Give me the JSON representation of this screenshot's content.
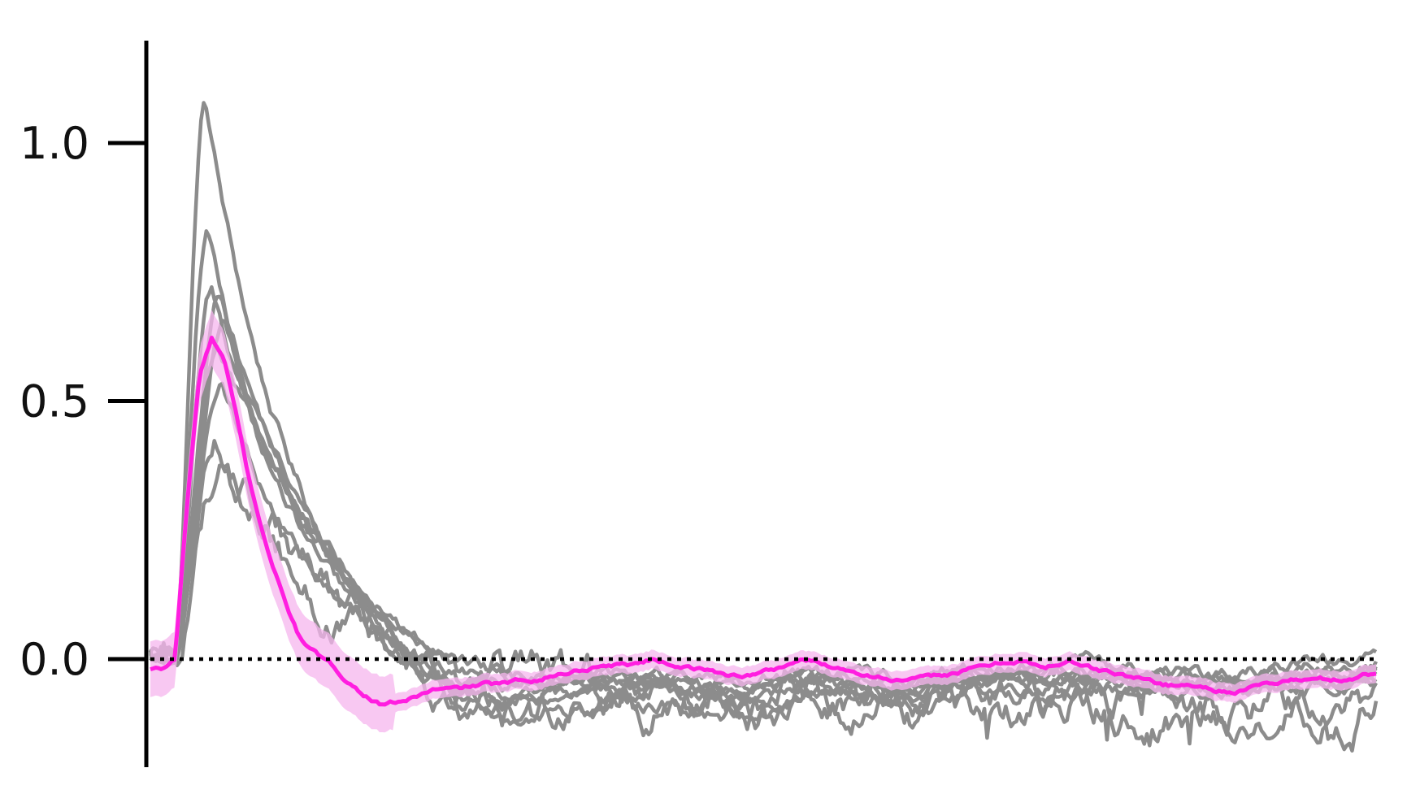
{
  "chart_data": {
    "type": "line",
    "title": "",
    "xlabel": "",
    "ylabel": "",
    "x_range": [
      0,
      1
    ],
    "ylim": [
      -0.21,
      1.2
    ],
    "y_ticks": [
      {
        "value": 0.0,
        "label": "0.0"
      },
      {
        "value": 0.5,
        "label": "0.5"
      },
      {
        "value": 1.0,
        "label": "1.0"
      }
    ],
    "baseline": {
      "value": 0.0,
      "style": "dotted"
    },
    "grid": false,
    "legend": "none",
    "colors": {
      "trace": "#8c8c8c",
      "mean": "#ff1ee0",
      "sem_band": "#f6b6ee",
      "axis": "#000000"
    },
    "mean_trace": {
      "x": [
        0,
        0.01,
        0.02,
        0.03,
        0.04,
        0.05,
        0.06,
        0.07,
        0.08,
        0.09,
        0.1,
        0.11,
        0.12,
        0.13,
        0.15,
        0.17,
        0.19,
        0.21,
        0.23,
        0.25,
        0.27,
        0.29,
        0.31,
        0.33,
        0.35,
        0.37,
        0.39,
        0.41,
        0.43,
        0.45,
        0.47,
        0.49,
        0.51,
        0.53,
        0.55,
        0.57,
        0.59,
        0.61,
        0.63,
        0.65,
        0.67,
        0.69,
        0.71,
        0.73,
        0.75,
        0.77,
        0.79,
        0.81,
        0.83,
        0.85,
        0.87,
        0.89,
        0.91,
        0.93,
        0.95,
        0.97,
        0.99,
        1.0
      ],
      "y": [
        -0.02,
        -0.02,
        0.0,
        0.3,
        0.55,
        0.62,
        0.58,
        0.47,
        0.35,
        0.26,
        0.18,
        0.11,
        0.05,
        0.02,
        -0.02,
        -0.06,
        -0.09,
        -0.08,
        -0.06,
        -0.06,
        -0.05,
        -0.05,
        -0.04,
        -0.03,
        -0.02,
        -0.01,
        -0.01,
        0.0,
        -0.01,
        -0.02,
        -0.03,
        -0.03,
        -0.02,
        0.0,
        -0.01,
        -0.02,
        -0.03,
        -0.04,
        -0.04,
        -0.03,
        -0.02,
        -0.01,
        0.0,
        -0.02,
        0.0,
        -0.02,
        -0.03,
        -0.04,
        -0.05,
        -0.05,
        -0.06,
        -0.06,
        -0.05,
        -0.04,
        -0.04,
        -0.04,
        -0.03,
        -0.03
      ],
      "sem": 0.018
    },
    "series": [
      {
        "peak": 1.08,
        "peak_x": 0.045,
        "trough": -0.12,
        "end": -0.05,
        "noise": 0.012
      },
      {
        "peak": 0.82,
        "peak_x": 0.047,
        "trough": -0.1,
        "end": -0.04,
        "noise": 0.012
      },
      {
        "peak": 0.7,
        "peak_x": 0.05,
        "trough": -0.15,
        "end": -0.03,
        "noise": 0.014
      },
      {
        "peak": 0.68,
        "peak_x": 0.058,
        "trough": -0.11,
        "end": -0.02,
        "noise": 0.012
      },
      {
        "peak": 0.65,
        "peak_x": 0.06,
        "trough": -0.08,
        "end": -0.04,
        "noise": 0.012
      },
      {
        "peak": 0.62,
        "peak_x": 0.055,
        "trough": -0.09,
        "end": -0.02,
        "noise": 0.012
      },
      {
        "peak": 0.55,
        "peak_x": 0.058,
        "trough": -0.07,
        "end": -0.05,
        "noise": 0.012
      },
      {
        "peak": 0.45,
        "peak_x": 0.055,
        "trough": -0.08,
        "end": -0.09,
        "noise": 0.03
      },
      {
        "peak": 0.38,
        "peak_x": 0.057,
        "trough": -0.14,
        "end": -0.08,
        "noise": 0.03
      }
    ]
  }
}
